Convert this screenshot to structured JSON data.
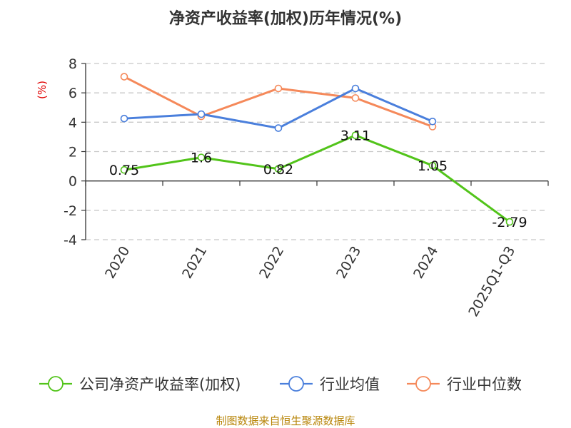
{
  "chart_data": {
    "type": "line",
    "title": "净资产收益率(加权)历年情况(%)",
    "ylabel": "(%)",
    "categories": [
      "2020",
      "2021",
      "2022",
      "2023",
      "2024",
      "2025Q1-Q3"
    ],
    "ylim": [
      -4,
      8
    ],
    "yticks": [
      -4,
      -2,
      0,
      2,
      4,
      6,
      8
    ],
    "grid": true,
    "legend_position": "bottom",
    "series": [
      {
        "name": "公司净资产收益率(加权)",
        "color": "#52c41a",
        "values": [
          0.75,
          1.6,
          0.82,
          3.11,
          1.05,
          -2.79
        ],
        "labels": [
          "0.75",
          "1.6",
          "0.82",
          "3.11",
          "1.05",
          "-2.79"
        ]
      },
      {
        "name": "行业均值",
        "color": "#4a7fdc",
        "values": [
          4.25,
          4.55,
          3.6,
          6.3,
          4.05,
          null
        ]
      },
      {
        "name": "行业中位数",
        "color": "#f5895a",
        "values": [
          7.1,
          4.4,
          6.3,
          5.65,
          3.7,
          null
        ]
      }
    ]
  },
  "source": "制图数据来自恒生聚源数据库"
}
